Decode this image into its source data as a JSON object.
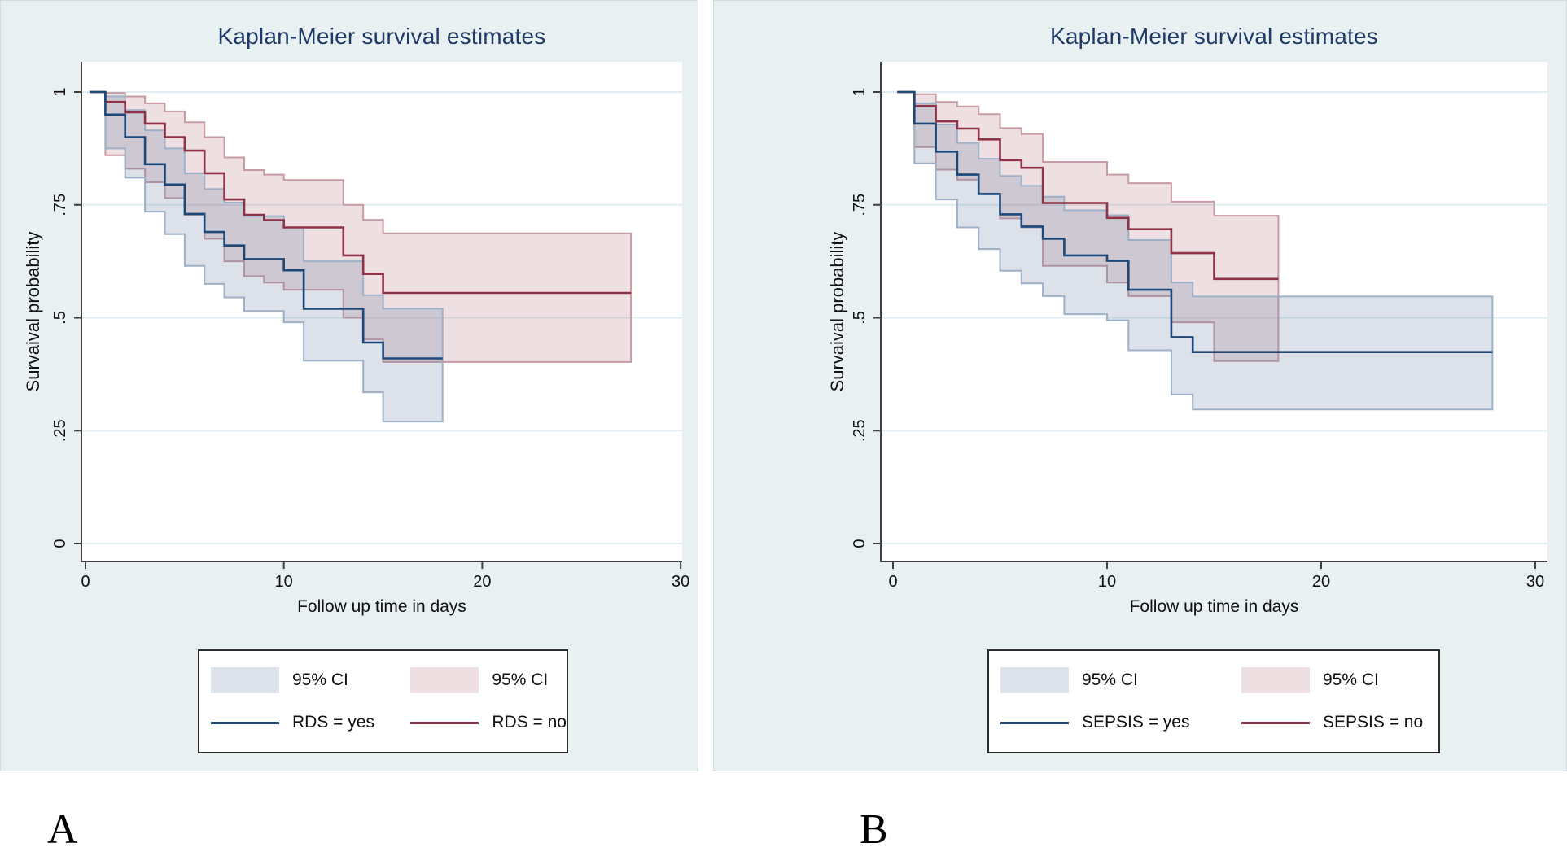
{
  "figure": {
    "panel_a_label": "A",
    "panel_b_label": "B"
  },
  "colors": {
    "panel_background": "#e9f0f2",
    "plot_background": "#ffffff",
    "gridline": "#e2edf1",
    "title_text": "#1f3a68",
    "axis_line": "#404040",
    "tick_text": "#111111",
    "navy_line": "#1c4879",
    "maroon_line": "#8e3247",
    "blue_ci_fill": "rgba(96,119,158,0.22)",
    "blue_ci_edge": "#9db0c8",
    "pink_ci_fill": "rgba(169,97,109,0.20)",
    "pink_ci_edge": "#c79ba3"
  },
  "chart_data": [
    {
      "id": "A",
      "type": "line",
      "subtype": "kaplan-meier-step",
      "title": "Kaplan-Meier survival estimates",
      "xlabel": "Follow up time in days",
      "ylabel": "Survaival probability",
      "xticks": [
        0,
        10,
        20,
        30
      ],
      "yticks": [
        1,
        0.75,
        0.5,
        0.25,
        0
      ],
      "ytick_labels": [
        "1",
        ".75",
        ".5",
        ".25",
        "0"
      ],
      "xlim": [
        0,
        30
      ],
      "ylim": [
        0,
        1
      ],
      "grid": true,
      "legend_position": "bottom-center",
      "legend": {
        "ci_yes": "95% CI",
        "ci_no": "95% CI",
        "line_yes": "RDS = yes",
        "line_no": "RDS = no"
      },
      "series": [
        {
          "name": "RDS = no",
          "group": "no",
          "line": [
            [
              0.2,
              1
            ],
            [
              1,
              0.978
            ],
            [
              2,
              0.955
            ],
            [
              3,
              0.93
            ],
            [
              4,
              0.9
            ],
            [
              5,
              0.87
            ],
            [
              6,
              0.82
            ],
            [
              7,
              0.762
            ],
            [
              8,
              0.728
            ],
            [
              9,
              0.716
            ],
            [
              10,
              0.7
            ],
            [
              13,
              0.638
            ],
            [
              14,
              0.597
            ],
            [
              15,
              0.555
            ],
            [
              27.5,
              0.555
            ]
          ],
          "ci_upper": [
            [
              1,
              0.998
            ],
            [
              2,
              0.99
            ],
            [
              3,
              0.975
            ],
            [
              4,
              0.957
            ],
            [
              5,
              0.933
            ],
            [
              6,
              0.9
            ],
            [
              7,
              0.855
            ],
            [
              8,
              0.827
            ],
            [
              9,
              0.817
            ],
            [
              10,
              0.805
            ],
            [
              13,
              0.75
            ],
            [
              14,
              0.717
            ],
            [
              15,
              0.687
            ],
            [
              27.5,
              0.687
            ]
          ],
          "ci_lower": [
            [
              1,
              0.86
            ],
            [
              2,
              0.83
            ],
            [
              3,
              0.8
            ],
            [
              4,
              0.765
            ],
            [
              5,
              0.728
            ],
            [
              6,
              0.675
            ],
            [
              7,
              0.625
            ],
            [
              8,
              0.592
            ],
            [
              9,
              0.578
            ],
            [
              10,
              0.562
            ],
            [
              13,
              0.5
            ],
            [
              14,
              0.452
            ],
            [
              15,
              0.402
            ],
            [
              27.5,
              0.402
            ]
          ]
        },
        {
          "name": "RDS = yes",
          "group": "yes",
          "line": [
            [
              0.2,
              1
            ],
            [
              1,
              0.95
            ],
            [
              2,
              0.9
            ],
            [
              3,
              0.84
            ],
            [
              4,
              0.795
            ],
            [
              5,
              0.73
            ],
            [
              6,
              0.69
            ],
            [
              7,
              0.66
            ],
            [
              8,
              0.63
            ],
            [
              10,
              0.605
            ],
            [
              11,
              0.52
            ],
            [
              14,
              0.445
            ],
            [
              15,
              0.41
            ],
            [
              18,
              0.41
            ]
          ],
          "ci_upper": [
            [
              1,
              0.99
            ],
            [
              2,
              0.96
            ],
            [
              3,
              0.915
            ],
            [
              4,
              0.875
            ],
            [
              5,
              0.82
            ],
            [
              6,
              0.785
            ],
            [
              7,
              0.755
            ],
            [
              8,
              0.725
            ],
            [
              10,
              0.7
            ],
            [
              11,
              0.625
            ],
            [
              14,
              0.55
            ],
            [
              15,
              0.52
            ],
            [
              18,
              0.52
            ]
          ],
          "ci_lower": [
            [
              1,
              0.875
            ],
            [
              2,
              0.81
            ],
            [
              3,
              0.735
            ],
            [
              4,
              0.685
            ],
            [
              5,
              0.615
            ],
            [
              6,
              0.575
            ],
            [
              7,
              0.545
            ],
            [
              8,
              0.515
            ],
            [
              10,
              0.49
            ],
            [
              11,
              0.405
            ],
            [
              14,
              0.335
            ],
            [
              15,
              0.27
            ],
            [
              18,
              0.27
            ]
          ]
        }
      ]
    },
    {
      "id": "B",
      "type": "line",
      "subtype": "kaplan-meier-step",
      "title": "Kaplan-Meier survival estimates",
      "xlabel": "Follow up time in days",
      "ylabel": "Survaival probability",
      "xticks": [
        0,
        10,
        20,
        30
      ],
      "yticks": [
        1,
        0.75,
        0.5,
        0.25,
        0
      ],
      "ytick_labels": [
        "1",
        ".75",
        ".5",
        ".25",
        "0"
      ],
      "xlim": [
        0,
        30
      ],
      "ylim": [
        0,
        1
      ],
      "grid": true,
      "legend_position": "bottom-center",
      "legend": {
        "ci_yes": "95% CI",
        "ci_no": "95% CI",
        "line_yes": "SEPSIS = yes",
        "line_no": "SEPSIS = no"
      },
      "series": [
        {
          "name": "SEPSIS = no",
          "group": "no",
          "line": [
            [
              0.2,
              1
            ],
            [
              1,
              0.969
            ],
            [
              2,
              0.935
            ],
            [
              3,
              0.919
            ],
            [
              4,
              0.895
            ],
            [
              5,
              0.849
            ],
            [
              6,
              0.832
            ],
            [
              7,
              0.754
            ],
            [
              10,
              0.721
            ],
            [
              11,
              0.696
            ],
            [
              13,
              0.643
            ],
            [
              15,
              0.586
            ],
            [
              18,
              0.586
            ]
          ],
          "ci_upper": [
            [
              1,
              0.995
            ],
            [
              2,
              0.978
            ],
            [
              3,
              0.968
            ],
            [
              4,
              0.951
            ],
            [
              5,
              0.92
            ],
            [
              6,
              0.907
            ],
            [
              7,
              0.845
            ],
            [
              10,
              0.817
            ],
            [
              11,
              0.798
            ],
            [
              13,
              0.757
            ],
            [
              15,
              0.726
            ],
            [
              18,
              0.726
            ]
          ],
          "ci_lower": [
            [
              1,
              0.878
            ],
            [
              2,
              0.828
            ],
            [
              3,
              0.806
            ],
            [
              4,
              0.775
            ],
            [
              5,
              0.72
            ],
            [
              6,
              0.7
            ],
            [
              7,
              0.615
            ],
            [
              10,
              0.578
            ],
            [
              11,
              0.548
            ],
            [
              13,
              0.49
            ],
            [
              15,
              0.404
            ],
            [
              18,
              0.404
            ]
          ]
        },
        {
          "name": "SEPSIS = yes",
          "group": "yes",
          "line": [
            [
              0.2,
              1
            ],
            [
              1,
              0.93
            ],
            [
              2,
              0.868
            ],
            [
              3,
              0.817
            ],
            [
              4,
              0.774
            ],
            [
              5,
              0.729
            ],
            [
              6,
              0.702
            ],
            [
              7,
              0.675
            ],
            [
              8,
              0.638
            ],
            [
              10,
              0.626
            ],
            [
              11,
              0.562
            ],
            [
              13,
              0.457
            ],
            [
              14,
              0.424
            ],
            [
              28,
              0.424
            ]
          ],
          "ci_upper": [
            [
              1,
              0.975
            ],
            [
              2,
              0.928
            ],
            [
              3,
              0.887
            ],
            [
              4,
              0.852
            ],
            [
              5,
              0.814
            ],
            [
              6,
              0.792
            ],
            [
              7,
              0.768
            ],
            [
              8,
              0.738
            ],
            [
              10,
              0.727
            ],
            [
              11,
              0.672
            ],
            [
              13,
              0.578
            ],
            [
              14,
              0.547
            ],
            [
              28,
              0.547
            ]
          ],
          "ci_lower": [
            [
              1,
              0.842
            ],
            [
              2,
              0.762
            ],
            [
              3,
              0.7
            ],
            [
              4,
              0.652
            ],
            [
              5,
              0.604
            ],
            [
              6,
              0.576
            ],
            [
              7,
              0.548
            ],
            [
              8,
              0.508
            ],
            [
              10,
              0.494
            ],
            [
              11,
              0.428
            ],
            [
              13,
              0.33
            ],
            [
              14,
              0.297
            ],
            [
              28,
              0.297
            ]
          ]
        }
      ]
    }
  ]
}
